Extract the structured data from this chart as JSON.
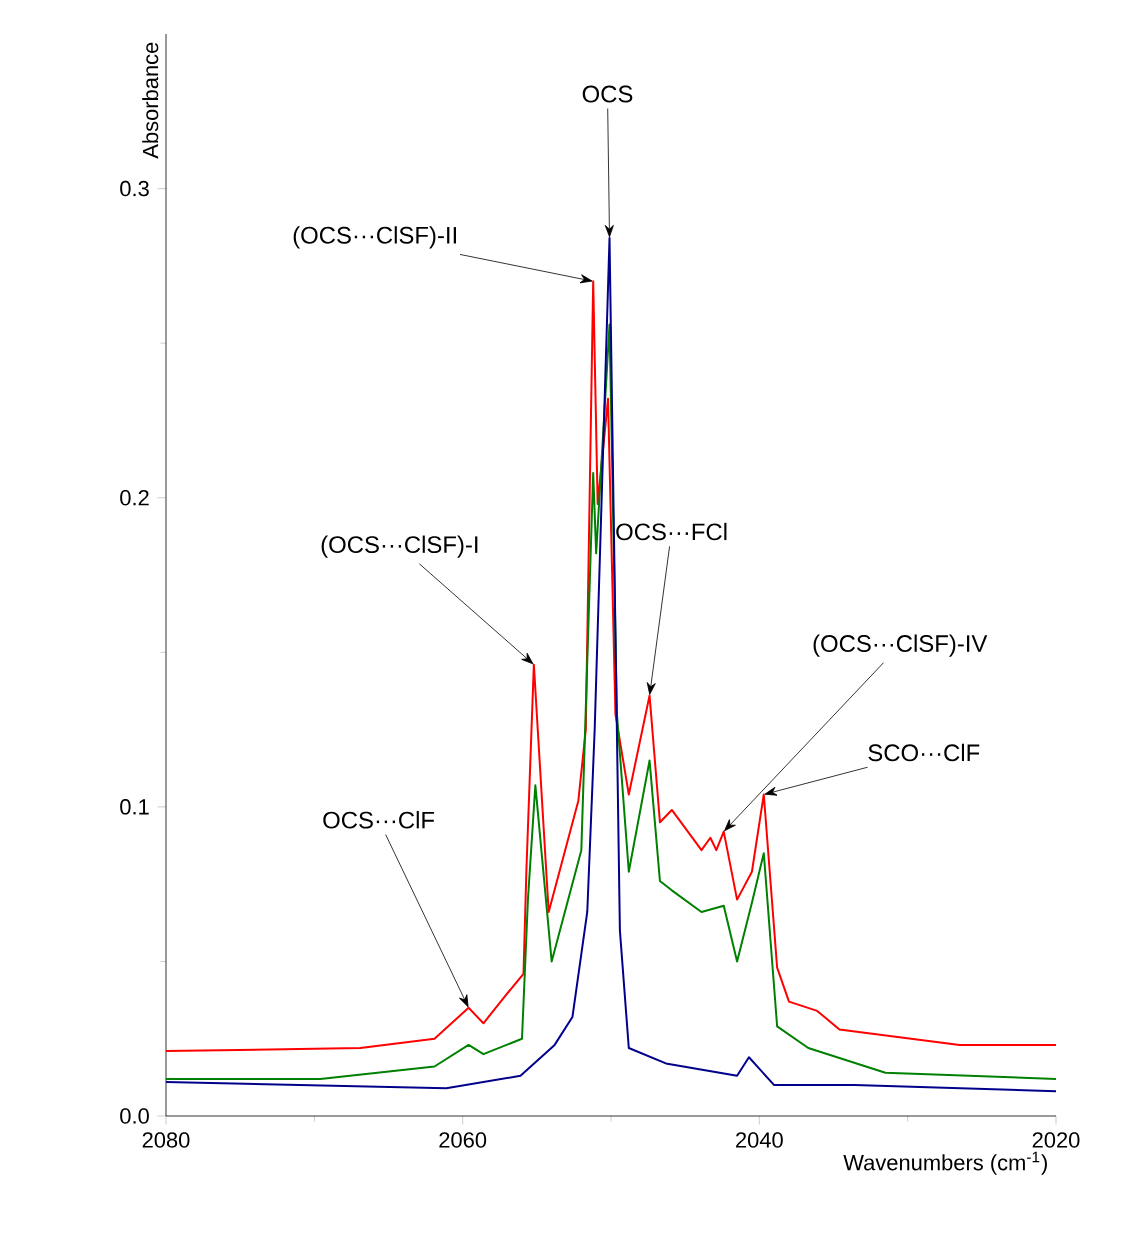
{
  "chart_data": {
    "type": "line",
    "xlabel": "Wavenumbers (cm$^{-1}$)",
    "ylabel": "Absorbance",
    "xlim": [
      2080,
      2020
    ],
    "ylim": [
      0,
      0.35
    ],
    "xticks": [
      2080,
      2060,
      2040,
      2020
    ],
    "yticks": [
      {
        "value": 0,
        "label": "0.0"
      },
      0.1,
      0.2,
      0.3
    ],
    "marker": "none",
    "series": [
      {
        "color": "#ff0000",
        "x": [
          2080,
          2066.9,
          2061.9,
          2059.6,
          2058.6,
          2057.1,
          2055.9,
          2055.7,
          2055.2,
          2054.2,
          2052.2,
          2051.7,
          2051.2,
          2050.9,
          2050.2,
          2049.7,
          2048.8,
          2047.4,
          2046.7,
          2045.9,
          2043.9,
          2043.3,
          2042.9,
          2042.4,
          2041.5,
          2040.5,
          2039.7,
          2038.8,
          2038.0,
          2036.1,
          2034.6,
          2026.5,
          2020
        ],
        "values": [
          0.021,
          0.022,
          0.025,
          0.035,
          0.03,
          0.039,
          0.046,
          0.08,
          0.146,
          0.066,
          0.102,
          0.125,
          0.27,
          0.198,
          0.232,
          0.13,
          0.104,
          0.136,
          0.095,
          0.099,
          0.086,
          0.09,
          0.086,
          0.092,
          0.07,
          0.079,
          0.104,
          0.048,
          0.037,
          0.034,
          0.028,
          0.023,
          0.023
        ]
      },
      {
        "color": "#008000",
        "x": [
          2080,
          2069.6,
          2061.9,
          2059.6,
          2058.6,
          2056.0,
          2055.6,
          2055.1,
          2054.0,
          2052.0,
          2051.2,
          2051.0,
          2050.1,
          2049.6,
          2048.8,
          2047.4,
          2046.7,
          2045.9,
          2043.9,
          2042.4,
          2041.5,
          2040.5,
          2039.7,
          2038.8,
          2036.7,
          2031.5,
          2020
        ],
        "values": [
          0.012,
          0.012,
          0.016,
          0.023,
          0.02,
          0.025,
          0.07,
          0.107,
          0.05,
          0.086,
          0.208,
          0.182,
          0.256,
          0.13,
          0.079,
          0.115,
          0.076,
          0.073,
          0.066,
          0.068,
          0.05,
          0.069,
          0.085,
          0.029,
          0.022,
          0.014,
          0.012
        ]
      },
      {
        "color": "#00008b",
        "x": [
          2080,
          2061.1,
          2056.1,
          2053.8,
          2052.6,
          2051.6,
          2051.1,
          2050.1,
          2049.4,
          2048.8,
          2046.3,
          2041.5,
          2040.7,
          2039.0,
          2033.6,
          2020
        ],
        "values": [
          0.011,
          0.009,
          0.013,
          0.023,
          0.032,
          0.066,
          0.125,
          0.284,
          0.06,
          0.022,
          0.017,
          0.013,
          0.019,
          0.01,
          0.01,
          0.008
        ]
      }
    ],
    "annotations": [
      {
        "text": "OCS",
        "x": 2050.1,
        "y": 0.284
      },
      {
        "text": "(OCS···ClSF)-II",
        "x": 2051.2,
        "y": 0.27
      },
      {
        "text": "OCS···FCl",
        "x": 2047.4,
        "y": 0.136
      },
      {
        "text": "(OCS···ClSF)-IV",
        "x": 2042.4,
        "y": 0.092
      },
      {
        "text": "SCO···ClF",
        "x": 2039.7,
        "y": 0.104
      },
      {
        "text": "(OCS···ClSF)-I",
        "x": 2055.2,
        "y": 0.146
      },
      {
        "text": "OCS···ClF",
        "x": 2059.6,
        "y": 0.035
      }
    ]
  }
}
